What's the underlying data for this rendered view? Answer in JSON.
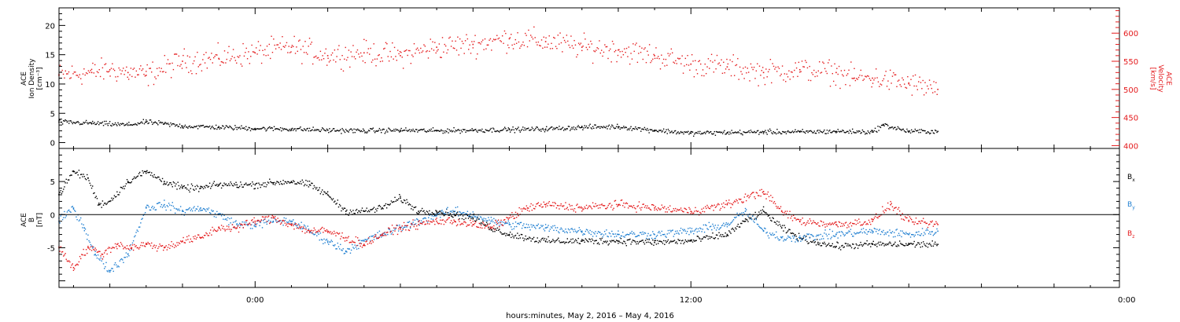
{
  "xaxis": {
    "label": "hours:minutes,  May  2, 2016 – May  4, 2016",
    "ticks": [
      "0:00",
      "12:00",
      "0:00"
    ],
    "tick_hours": [
      0,
      12,
      24
    ],
    "range_hours": [
      -5.4,
      23.8
    ]
  },
  "top_panel": {
    "left_label": [
      "ACE",
      "Ion Density",
      "[cm⁻³]"
    ],
    "right_label": [
      "ACE",
      "Velocity",
      "[km/s]"
    ],
    "colors": {
      "density": "#000000",
      "velocity": "#e41a1c",
      "right_axis": "#e41a1c"
    }
  },
  "bottom_panel": {
    "left_label": [
      "ACE",
      "B",
      "[nT]"
    ],
    "legend": [
      {
        "name": "Bx",
        "base": "B",
        "sub": "x",
        "color": "#000000"
      },
      {
        "name": "By",
        "base": "B",
        "sub": "y",
        "color": "#1f7fd1"
      },
      {
        "name": "Bz",
        "base": "B",
        "sub": "z",
        "color": "#e41a1c"
      }
    ]
  },
  "chart_data": [
    {
      "type": "scatter",
      "panel": "top",
      "xlabel": "hours:minutes,  May  2, 2016 – May  4, 2016",
      "ylabel": "ACE Ion Density [cm⁻³]",
      "ylim": [
        -1,
        23
      ],
      "yticks": [
        0,
        5,
        10,
        15,
        20
      ],
      "y2label": "ACE Velocity [km/s]",
      "y2lim": [
        395,
        645
      ],
      "y2ticks": [
        400,
        450,
        500,
        550,
        600
      ],
      "grid": false,
      "series": [
        {
          "name": "Ion Density",
          "color": "#000000",
          "axis": "left",
          "x": [
            -5.4,
            -4.5,
            -3.5,
            -3.0,
            -2.5,
            -2.0,
            -1.0,
            0.0,
            1.0,
            2.0,
            3.0,
            4.0,
            5.0,
            6.0,
            7.0,
            8.0,
            9.0,
            10.0,
            11.0,
            12.0,
            13.0,
            14.0,
            15.0,
            16.0,
            17.0,
            17.3,
            18.0,
            18.8
          ],
          "values": [
            3.5,
            3.3,
            3.0,
            3.5,
            3.2,
            2.8,
            2.6,
            2.4,
            2.3,
            2.1,
            2.0,
            2.1,
            2.0,
            2.1,
            2.2,
            2.3,
            2.6,
            2.7,
            2.1,
            1.6,
            1.7,
            1.8,
            1.8,
            1.9,
            1.8,
            3.0,
            1.9,
            1.9
          ]
        },
        {
          "name": "Velocity",
          "color": "#e41a1c",
          "axis": "right",
          "x": [
            -5.4,
            -4.5,
            -4.0,
            -3.5,
            -3.0,
            -2.0,
            -1.0,
            0.0,
            1.0,
            2.0,
            3.0,
            4.0,
            5.0,
            6.0,
            7.0,
            8.0,
            9.0,
            10.0,
            11.0,
            12.0,
            13.0,
            14.0,
            15.0,
            16.0,
            16.5,
            17.0,
            18.0,
            18.8
          ],
          "values": [
            525,
            530,
            535,
            530,
            525,
            550,
            555,
            565,
            575,
            560,
            565,
            560,
            575,
            580,
            590,
            585,
            575,
            570,
            560,
            545,
            540,
            530,
            535,
            530,
            520,
            520,
            510,
            500
          ]
        }
      ]
    },
    {
      "type": "scatter",
      "panel": "bottom",
      "ylabel": "ACE B [nT]",
      "ylim": [
        -11,
        10
      ],
      "yticks": [
        -5,
        0,
        5
      ],
      "zero_line": true,
      "grid": false,
      "series": [
        {
          "name": "Bx",
          "color": "#000000",
          "x": [
            -5.4,
            -5.0,
            -4.6,
            -4.3,
            -4.0,
            -3.5,
            -3.0,
            -2.5,
            -2.0,
            -1.5,
            -1.0,
            -0.5,
            0.0,
            0.5,
            1.0,
            1.5,
            2.0,
            2.5,
            3.0,
            3.5,
            4.0,
            4.5,
            5.0,
            5.5,
            6.0,
            6.5,
            7.0,
            8.0,
            9.0,
            10.0,
            11.0,
            12.0,
            13.0,
            13.5,
            14.0,
            14.5,
            15.0,
            15.5,
            16.0,
            17.0,
            18.0,
            18.8
          ],
          "values": [
            3.0,
            6.5,
            5.5,
            1.5,
            2.0,
            5.0,
            6.5,
            5.0,
            4.0,
            4.0,
            4.5,
            4.5,
            4.5,
            4.8,
            5.0,
            4.5,
            3.0,
            0.5,
            0.5,
            1.0,
            2.5,
            0.5,
            0.5,
            0.0,
            -0.5,
            -2.0,
            -3.0,
            -4.0,
            -4.0,
            -4.0,
            -4.2,
            -4.0,
            -3.0,
            -1.0,
            0.5,
            -2.0,
            -3.5,
            -4.2,
            -4.8,
            -4.5,
            -4.5,
            -4.5
          ]
        },
        {
          "name": "By",
          "color": "#1f7fd1",
          "x": [
            -5.4,
            -5.0,
            -4.7,
            -4.4,
            -4.0,
            -3.5,
            -3.0,
            -2.5,
            -2.0,
            -1.5,
            -1.0,
            -0.5,
            0.0,
            0.5,
            1.0,
            1.5,
            2.0,
            2.5,
            3.0,
            3.5,
            4.0,
            4.5,
            5.0,
            5.5,
            6.0,
            6.5,
            7.0,
            8.0,
            9.0,
            10.0,
            11.0,
            12.0,
            13.0,
            13.5,
            14.0,
            14.5,
            15.0,
            16.0,
            17.0,
            18.0,
            18.8
          ],
          "values": [
            -1.0,
            1.0,
            -2.0,
            -6.0,
            -8.5,
            -6.0,
            1.0,
            1.5,
            0.5,
            1.0,
            0.0,
            -1.5,
            -1.5,
            -1.0,
            -1.0,
            -2.5,
            -4.0,
            -5.5,
            -4.0,
            -3.0,
            -2.0,
            -1.0,
            0.0,
            0.5,
            0.0,
            -1.0,
            -1.5,
            -2.0,
            -2.5,
            -3.0,
            -3.0,
            -2.5,
            -1.5,
            0.5,
            -2.5,
            -3.5,
            -3.5,
            -3.0,
            -2.5,
            -3.0,
            -2.5
          ]
        },
        {
          "name": "Bz",
          "color": "#e41a1c",
          "x": [
            -5.4,
            -5.0,
            -4.6,
            -4.2,
            -3.8,
            -3.4,
            -3.0,
            -2.5,
            -2.0,
            -1.5,
            -1.0,
            -0.5,
            0.0,
            0.5,
            1.0,
            1.5,
            2.0,
            2.5,
            3.0,
            3.5,
            4.0,
            4.5,
            5.0,
            5.5,
            6.0,
            6.5,
            7.0,
            7.5,
            8.0,
            9.0,
            10.0,
            11.0,
            12.0,
            13.0,
            14.0,
            14.5,
            15.0,
            16.0,
            17.0,
            17.5,
            18.0,
            18.8
          ],
          "values": [
            -5.0,
            -8.0,
            -5.0,
            -6.0,
            -4.5,
            -5.0,
            -4.5,
            -5.0,
            -4.0,
            -3.5,
            -2.0,
            -2.0,
            -1.0,
            -0.5,
            -1.5,
            -2.5,
            -2.5,
            -3.5,
            -4.5,
            -3.0,
            -2.0,
            -1.5,
            -1.0,
            -1.0,
            -1.5,
            -2.0,
            -0.5,
            1.0,
            1.5,
            1.0,
            1.5,
            1.0,
            0.5,
            1.5,
            3.5,
            0.5,
            -1.0,
            -1.5,
            -1.0,
            1.5,
            -1.0,
            -1.5
          ]
        }
      ]
    }
  ]
}
